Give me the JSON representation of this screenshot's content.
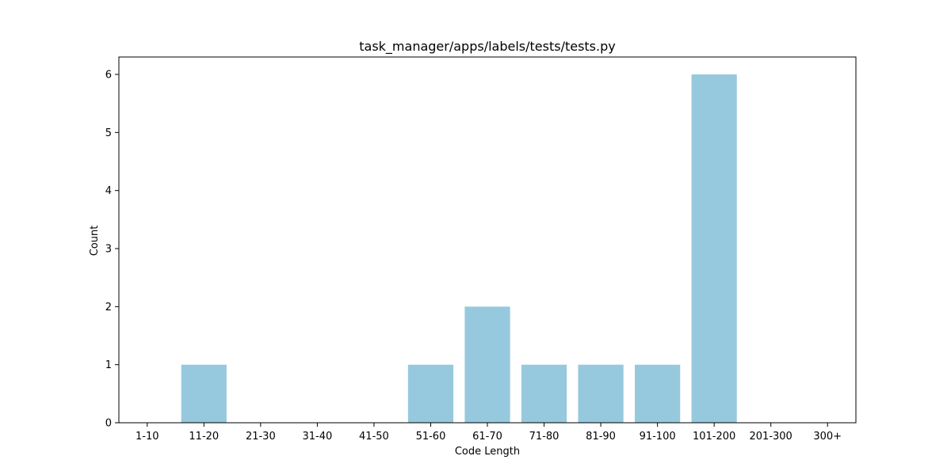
{
  "chart_data": {
    "type": "bar",
    "title": "task_manager/apps/labels/tests/tests.py",
    "xlabel": "Code Length",
    "ylabel": "Count",
    "categories": [
      "1-10",
      "11-20",
      "21-30",
      "31-40",
      "41-50",
      "51-60",
      "61-70",
      "71-80",
      "81-90",
      "91-100",
      "101-200",
      "201-300",
      "300+"
    ],
    "values": [
      0,
      1,
      0,
      0,
      0,
      1,
      2,
      1,
      1,
      1,
      6,
      0,
      0
    ],
    "ylim": [
      0,
      6.3
    ],
    "yticks": [
      "0",
      "1",
      "2",
      "3",
      "4",
      "5",
      "6"
    ],
    "grid": false,
    "legend": "none",
    "bar_color": "#96c9dd"
  }
}
